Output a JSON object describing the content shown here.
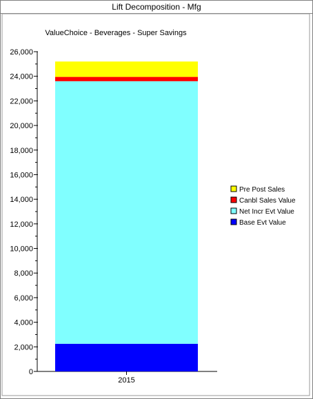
{
  "window": {
    "title": "Lift Decomposition - Mfg"
  },
  "chart_data": {
    "type": "bar",
    "stacked": true,
    "title": "ValueChoice - Beverages - Super Savings",
    "xlabel": "",
    "ylabel": "",
    "categories": [
      "2015"
    ],
    "ylim": [
      0,
      26000
    ],
    "yticks": [
      "0",
      "2,000",
      "4,000",
      "6,000",
      "8,000",
      "10,000",
      "12,000",
      "14,000",
      "16,000",
      "18,000",
      "20,000",
      "22,000",
      "24,000",
      "26,000"
    ],
    "grid": false,
    "legend_position": "right",
    "series": [
      {
        "name": "Base Evt Value",
        "values": [
          2250
        ],
        "color": "#0000ff"
      },
      {
        "name": "Net Incr Evt Value",
        "values": [
          21350
        ],
        "color": "#80ffff"
      },
      {
        "name": "Canbl Sales Value",
        "values": [
          350
        ],
        "color": "#ff0000"
      },
      {
        "name": "Pre Post Sales",
        "values": [
          1250
        ],
        "color": "#ffff00"
      }
    ],
    "legend_order": [
      "Pre Post Sales",
      "Canbl Sales Value",
      "Net Incr Evt Value",
      "Base Evt Value"
    ]
  }
}
